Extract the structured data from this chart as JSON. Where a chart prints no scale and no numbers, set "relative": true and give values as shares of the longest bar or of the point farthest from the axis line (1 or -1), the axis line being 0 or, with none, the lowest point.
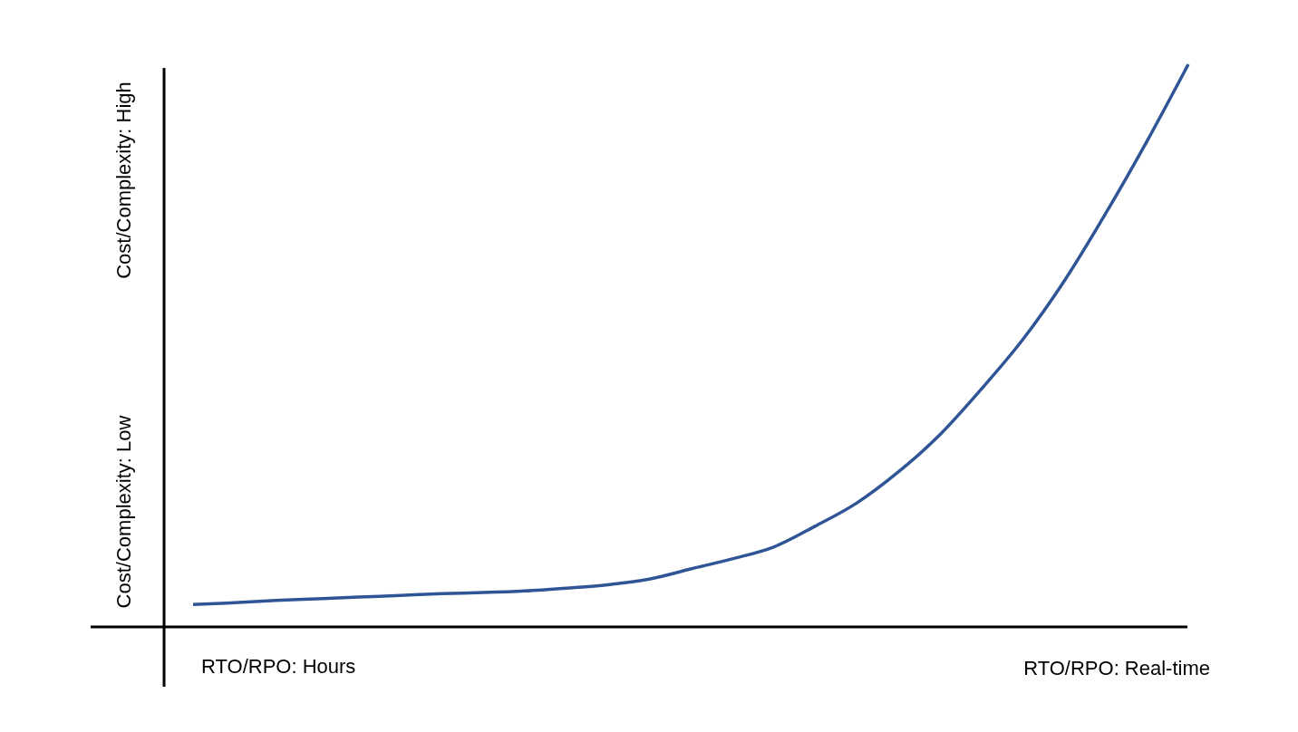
{
  "chart_data": {
    "type": "line",
    "relative": true,
    "categories": [
      null,
      null,
      null,
      null,
      null,
      null,
      null,
      null,
      null,
      null,
      null,
      null,
      null,
      null,
      null,
      null,
      null,
      null,
      null,
      null,
      null,
      null,
      null,
      null,
      null
    ],
    "series": [
      {
        "color": "#2f5597",
        "values": [
          0.04,
          0.043,
          0.047,
          0.05,
          0.053,
          0.056,
          0.059,
          0.061,
          0.064,
          0.069,
          0.075,
          0.085,
          0.103,
          0.121,
          0.142,
          0.179,
          0.22,
          0.275,
          0.341,
          0.422,
          0.51,
          0.614,
          0.734,
          0.863,
          1.0
        ]
      }
    ],
    "annotations": [
      "Cost/Complexity: High",
      "Cost/Complexity: Low",
      "RTO/RPO: Hours",
      "RTO/RPO: Real-time"
    ],
    "line_style": "solid"
  }
}
